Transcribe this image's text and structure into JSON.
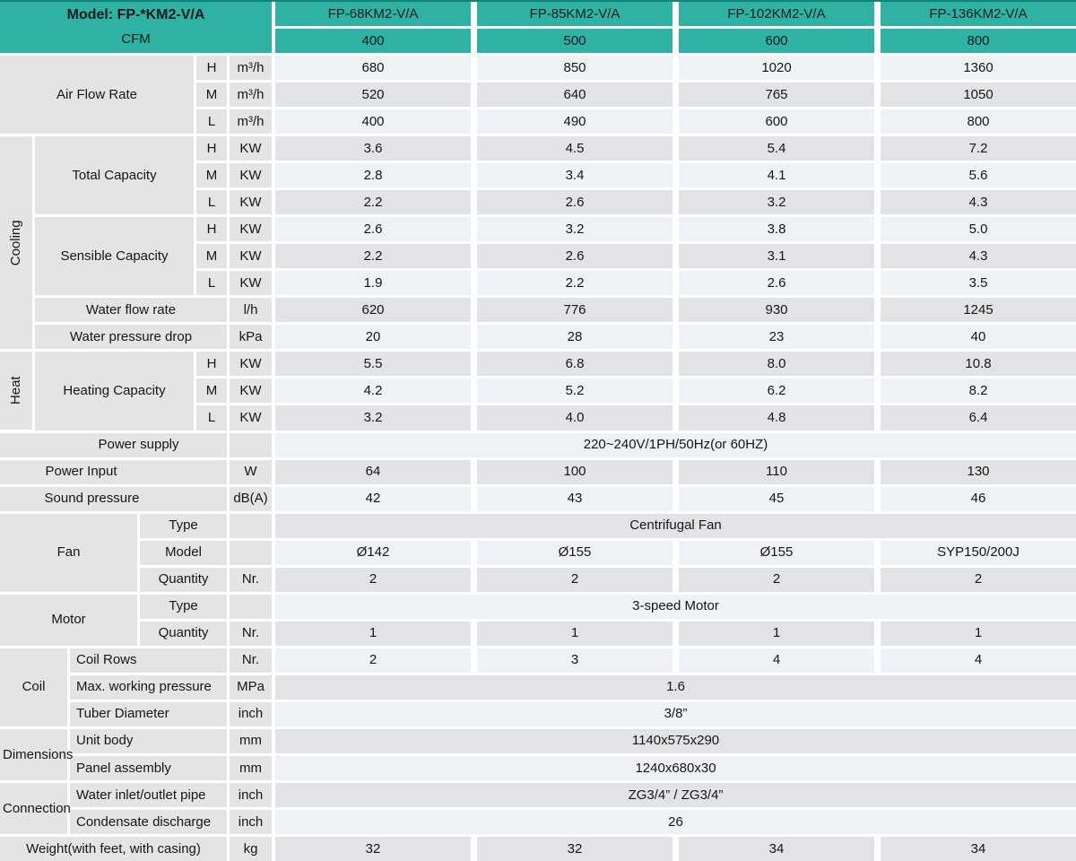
{
  "table": {
    "header": {
      "model_label": "Model: FP-*KM2-V/A",
      "cfm_label": "CFM",
      "models": [
        "FP-68KM2-V/A",
        "FP-85KM2-V/A",
        "FP-102KM2-V/A",
        "FP-136KM2-V/A"
      ],
      "cfm": [
        "400",
        "500",
        "600",
        "800"
      ]
    },
    "labels": {
      "air_flow": "Air Flow Rate",
      "cooling": "Cooling",
      "total_capacity": "Total Capacity",
      "sensible_capacity": "Sensible Capacity",
      "water_flow": "Water flow rate",
      "water_drop": "Water pressure drop",
      "heat": "Heat",
      "heating_capacity": "Heating Capacity",
      "power_supply": "Power supply",
      "power_input": "Power Input",
      "sound_pressure": "Sound pressure",
      "fan": "Fan",
      "motor": "Motor",
      "coil": "Coil",
      "dimensions": "Dimensions",
      "connection": "Connection",
      "weight": "Weight(with feet, with casing)",
      "type": "Type",
      "model": "Model",
      "quantity": "Quantity",
      "coil_rows": "Coil Rows",
      "max_pressure": "Max. working pressure",
      "tuber_diameter": "Tuber Diameter",
      "unit_body": "Unit body",
      "panel_assembly": "Panel assembly",
      "water_pipe": "Water inlet/outlet pipe",
      "condensate": "Condensate discharge"
    },
    "speeds": {
      "h": "H",
      "m": "M",
      "l": "L"
    },
    "units": {
      "m3h": "m³/h",
      "kw": "KW",
      "lh": "l/h",
      "kpa": "kPa",
      "w": "W",
      "dba": "dB(A)",
      "nr": "Nr.",
      "mpa": "MPa",
      "inch": "inch",
      "mm": "mm",
      "kg": "kg"
    },
    "values": {
      "airflow_h": [
        "680",
        "850",
        "1020",
        "1360"
      ],
      "airflow_m": [
        "520",
        "640",
        "765",
        "1050"
      ],
      "airflow_l": [
        "400",
        "490",
        "600",
        "800"
      ],
      "total_h": [
        "3.6",
        "4.5",
        "5.4",
        "7.2"
      ],
      "total_m": [
        "2.8",
        "3.4",
        "4.1",
        "5.6"
      ],
      "total_l": [
        "2.2",
        "2.6",
        "3.2",
        "4.3"
      ],
      "sensible_h": [
        "2.6",
        "3.2",
        "3.8",
        "5.0"
      ],
      "sensible_m": [
        "2.2",
        "2.6",
        "3.1",
        "4.3"
      ],
      "sensible_l": [
        "1.9",
        "2.2",
        "2.6",
        "3.5"
      ],
      "water_flow": [
        "620",
        "776",
        "930",
        "1245"
      ],
      "water_drop": [
        "20",
        "28",
        "23",
        "40"
      ],
      "heating_h": [
        "5.5",
        "6.8",
        "8.0",
        "10.8"
      ],
      "heating_m": [
        "4.2",
        "5.2",
        "6.2",
        "8.2"
      ],
      "heating_l": [
        "3.2",
        "4.0",
        "4.8",
        "6.4"
      ],
      "power_supply": "220~240V/1PH/50Hz(or 60HZ)",
      "power_input": [
        "64",
        "100",
        "110",
        "130"
      ],
      "sound_pressure": [
        "42",
        "43",
        "45",
        "46"
      ],
      "fan_type": "Centrifugal Fan",
      "fan_model": [
        "Ø142",
        "Ø155",
        "Ø155",
        "SYP150/200J"
      ],
      "fan_quantity": [
        "2",
        "2",
        "2",
        "2"
      ],
      "motor_type": "3-speed Motor",
      "motor_quantity": [
        "1",
        "1",
        "1",
        "1"
      ],
      "coil_rows": [
        "2",
        "3",
        "4",
        "4"
      ],
      "max_working_pressure": "1.6",
      "tuber_diameter": "3/8”",
      "unit_body": "1140x575x290",
      "panel_assembly": "1240x680x30",
      "water_pipe": "ZG3/4” / ZG3/4”",
      "condensate": "26",
      "weight": [
        "32",
        "32",
        "34",
        "34"
      ]
    },
    "colors": {
      "teal": "#2fb2a4",
      "teal_dark": "#0f8477",
      "row_light": "#eef1f5",
      "row_gray": "#e2e3e6",
      "left_gray": "#e3e4e6",
      "text": "#161616"
    }
  }
}
